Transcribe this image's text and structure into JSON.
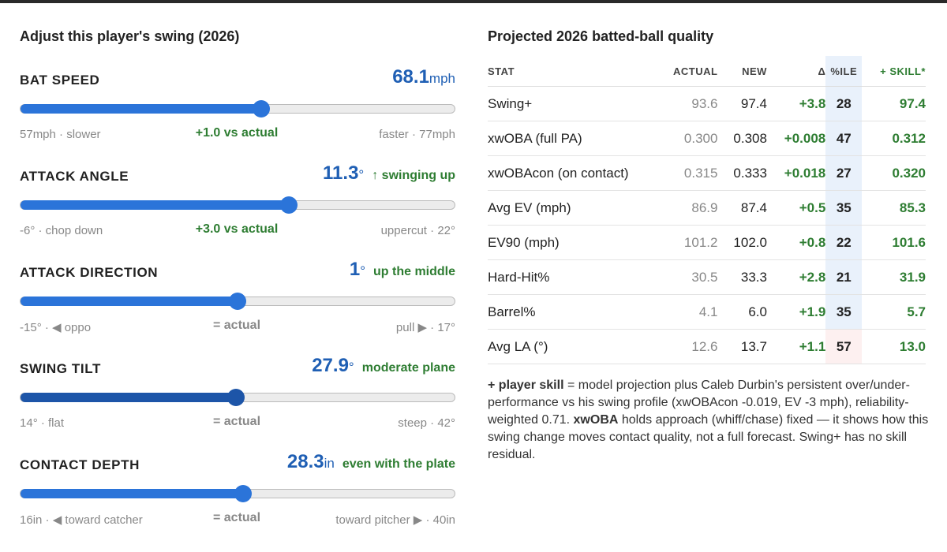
{
  "left": {
    "title": "Adjust this player's swing (2026)",
    "sliders": [
      {
        "label": "BAT SPEED",
        "value": 68.1,
        "unit": "mph",
        "note": "",
        "delta": "+1.0 vs actual",
        "min": 57,
        "min_text": "mph · slower",
        "max_text": "faster · ",
        "max": 77,
        "max_unit": "mph"
      },
      {
        "label": "ATTACK ANGLE",
        "value": 11.3,
        "unit": "°",
        "note": "↑ swinging up",
        "delta": "+3.0 vs actual",
        "min": -6,
        "min_text": "° · chop down",
        "max_text": "uppercut · ",
        "max": 22,
        "max_unit": "°"
      },
      {
        "label": "ATTACK DIRECTION",
        "value": 1.0,
        "unit": "°",
        "note": "up the middle",
        "delta": "= actual",
        "min": -15,
        "min_text": "° · ◀ oppo",
        "max_text": "pull ▶ · ",
        "max": 17,
        "max_unit": "°"
      },
      {
        "label": "SWING TILT",
        "value": 27.9,
        "unit": "°",
        "note": "moderate plane",
        "delta": "= actual",
        "min": 14,
        "min_text": "° · flat",
        "max_text": "steep · ",
        "max": 42,
        "max_unit": "°"
      },
      {
        "label": "CONTACT DEPTH",
        "value": 28.3,
        "unit": "in",
        "note": "even with the plate",
        "delta": "= actual",
        "min": 16,
        "min_text": "in · ◀ toward catcher",
        "max_text": "toward pitcher ▶ · ",
        "max": 40,
        "max_unit": "in"
      }
    ]
  },
  "right": {
    "title": "Projected 2026 batted-ball quality",
    "table": {
      "header": [
        "STAT",
        "ACTUAL",
        "NEW",
        "Δ",
        "%ILE",
        "+ SKILL*"
      ],
      "rows": [
        [
          "Swing+",
          "93.6",
          "97.4",
          "+3.8",
          "28",
          "97.4"
        ],
        [
          "xwOBA (full PA)",
          "0.300",
          "0.308",
          "+0.008",
          "47",
          "0.312"
        ],
        [
          "xwOBAcon (on contact)",
          "0.315",
          "0.333",
          "+0.018",
          "27",
          "0.320"
        ],
        [
          "Avg EV (mph)",
          "86.9",
          "87.4",
          "+0.5",
          "35",
          "85.3"
        ],
        [
          "EV90 (mph)",
          "101.2",
          "102.0",
          "+0.8",
          "22",
          "101.6"
        ],
        [
          "Hard-Hit%",
          "30.5",
          "33.3",
          "+2.8",
          "21",
          "31.9"
        ],
        [
          "Barrel%",
          "4.1",
          "6.0",
          "+1.9",
          "35",
          "5.7"
        ],
        [
          "Avg LA (°)",
          "12.6",
          "13.7",
          "+1.1",
          "57",
          "13.0"
        ]
      ]
    },
    "note": [
      "+ player skill",
      " = model projection plus Caleb Durbin's persistent over/under-performance vs his swing profile (xwOBAcon -0.019, EV -3 mph), reliability-weighted 0.71. ",
      "xwOBA",
      " holds approach (whiff/chase) fixed — it shows how this swing change moves contact quality, not a full forecast. Swing+ has no skill residual."
    ]
  }
}
